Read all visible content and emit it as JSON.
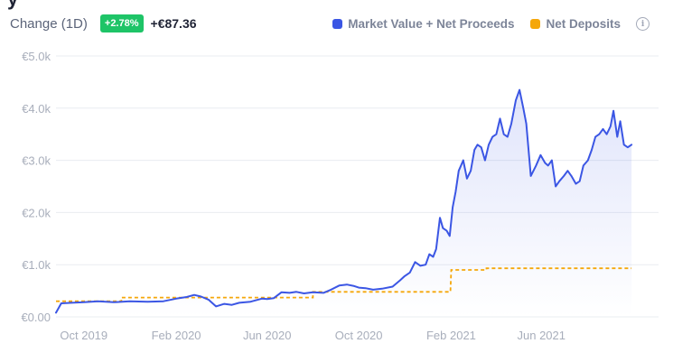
{
  "header": {
    "clipped_title": "y",
    "change_label": "Change (1D)",
    "change_pct": "+2.78%",
    "change_abs": "+€87.36"
  },
  "colors": {
    "market_line": "#3b56e4",
    "deposit_line": "#f5a70a",
    "badge": "#1ec467",
    "grid": "#e9ecf1"
  },
  "icons": {
    "info": "info-icon"
  },
  "chart_data": {
    "type": "area",
    "title": "",
    "xlabel": "",
    "ylabel": "",
    "ylim": [
      0,
      5000
    ],
    "grid": true,
    "legend_position": "top-right",
    "y_tick_values": [
      0,
      1000,
      2000,
      3000,
      4000,
      5000
    ],
    "y_ticks": [
      "€0.00",
      "€1.0k",
      "€2.0k",
      "€3.0k",
      "€4.0k",
      "€5.0k"
    ],
    "x_ticks": [
      "Oct 2019",
      "Feb 2020",
      "Jun 2020",
      "Oct 2020",
      "Feb 2021",
      "Jun 2021"
    ],
    "x_tick_dates": [
      "2019-10-01",
      "2020-02-01",
      "2020-06-01",
      "2020-10-01",
      "2021-02-01",
      "2021-06-01"
    ],
    "xlim": [
      "2019-08-25",
      "2021-11-04"
    ],
    "series": [
      {
        "name": "Market Value + Net Proceeds",
        "style": "line-area",
        "points": [
          [
            "2019-08-25",
            80
          ],
          [
            "2019-09-01",
            260
          ],
          [
            "2019-09-15",
            270
          ],
          [
            "2019-10-01",
            280
          ],
          [
            "2019-10-20",
            300
          ],
          [
            "2019-11-10",
            280
          ],
          [
            "2019-12-01",
            300
          ],
          [
            "2019-12-25",
            290
          ],
          [
            "2020-01-15",
            300
          ],
          [
            "2020-02-01",
            350
          ],
          [
            "2020-02-15",
            380
          ],
          [
            "2020-02-25",
            420
          ],
          [
            "2020-03-05",
            390
          ],
          [
            "2020-03-15",
            330
          ],
          [
            "2020-03-25",
            200
          ],
          [
            "2020-04-05",
            250
          ],
          [
            "2020-04-15",
            230
          ],
          [
            "2020-04-25",
            270
          ],
          [
            "2020-05-10",
            290
          ],
          [
            "2020-05-25",
            350
          ],
          [
            "2020-06-01",
            340
          ],
          [
            "2020-06-10",
            360
          ],
          [
            "2020-06-20",
            470
          ],
          [
            "2020-07-01",
            460
          ],
          [
            "2020-07-10",
            480
          ],
          [
            "2020-07-20",
            450
          ],
          [
            "2020-08-01",
            470
          ],
          [
            "2020-08-15",
            460
          ],
          [
            "2020-08-25",
            520
          ],
          [
            "2020-09-05",
            600
          ],
          [
            "2020-09-15",
            620
          ],
          [
            "2020-09-25",
            590
          ],
          [
            "2020-10-01",
            560
          ],
          [
            "2020-10-10",
            550
          ],
          [
            "2020-10-20",
            520
          ],
          [
            "2020-11-01",
            540
          ],
          [
            "2020-11-15",
            580
          ],
          [
            "2020-11-25",
            700
          ],
          [
            "2020-12-01",
            780
          ],
          [
            "2020-12-08",
            850
          ],
          [
            "2020-12-15",
            1050
          ],
          [
            "2020-12-22",
            980
          ],
          [
            "2020-12-29",
            1000
          ],
          [
            "2021-01-03",
            1200
          ],
          [
            "2021-01-08",
            1150
          ],
          [
            "2021-01-12",
            1300
          ],
          [
            "2021-01-17",
            1900
          ],
          [
            "2021-01-21",
            1700
          ],
          [
            "2021-01-26",
            1650
          ],
          [
            "2021-01-30",
            1550
          ],
          [
            "2021-02-03",
            2100
          ],
          [
            "2021-02-07",
            2400
          ],
          [
            "2021-02-11",
            2800
          ],
          [
            "2021-02-17",
            3000
          ],
          [
            "2021-02-22",
            2650
          ],
          [
            "2021-02-27",
            2800
          ],
          [
            "2021-03-04",
            3200
          ],
          [
            "2021-03-08",
            3300
          ],
          [
            "2021-03-13",
            3250
          ],
          [
            "2021-03-18",
            3000
          ],
          [
            "2021-03-23",
            3300
          ],
          [
            "2021-03-28",
            3450
          ],
          [
            "2021-04-02",
            3500
          ],
          [
            "2021-04-07",
            3800
          ],
          [
            "2021-04-12",
            3500
          ],
          [
            "2021-04-17",
            3450
          ],
          [
            "2021-04-22",
            3700
          ],
          [
            "2021-04-28",
            4150
          ],
          [
            "2021-05-03",
            4350
          ],
          [
            "2021-05-08",
            4000
          ],
          [
            "2021-05-12",
            3700
          ],
          [
            "2021-05-18",
            2700
          ],
          [
            "2021-05-25",
            2900
          ],
          [
            "2021-05-31",
            3100
          ],
          [
            "2021-06-06",
            2950
          ],
          [
            "2021-06-10",
            2900
          ],
          [
            "2021-06-15",
            3000
          ],
          [
            "2021-06-20",
            2500
          ],
          [
            "2021-06-25",
            2600
          ],
          [
            "2021-07-01",
            2700
          ],
          [
            "2021-07-06",
            2800
          ],
          [
            "2021-07-11",
            2700
          ],
          [
            "2021-07-17",
            2550
          ],
          [
            "2021-07-22",
            2600
          ],
          [
            "2021-07-27",
            2900
          ],
          [
            "2021-08-02",
            3000
          ],
          [
            "2021-08-07",
            3200
          ],
          [
            "2021-08-12",
            3450
          ],
          [
            "2021-08-17",
            3500
          ],
          [
            "2021-08-22",
            3600
          ],
          [
            "2021-08-27",
            3500
          ],
          [
            "2021-09-01",
            3650
          ],
          [
            "2021-09-05",
            3950
          ],
          [
            "2021-09-10",
            3450
          ],
          [
            "2021-09-14",
            3750
          ],
          [
            "2021-09-19",
            3300
          ],
          [
            "2021-09-24",
            3250
          ],
          [
            "2021-09-29",
            3300
          ]
        ]
      },
      {
        "name": "Net Deposits",
        "style": "dashed-step",
        "points": [
          [
            "2019-08-25",
            300
          ],
          [
            "2019-11-20",
            300
          ],
          [
            "2019-11-20",
            370
          ],
          [
            "2020-08-01",
            370
          ],
          [
            "2020-08-01",
            480
          ],
          [
            "2021-01-31",
            480
          ],
          [
            "2021-02-01",
            900
          ],
          [
            "2021-03-20",
            900
          ],
          [
            "2021-03-20",
            930
          ],
          [
            "2021-09-29",
            930
          ]
        ]
      }
    ]
  }
}
